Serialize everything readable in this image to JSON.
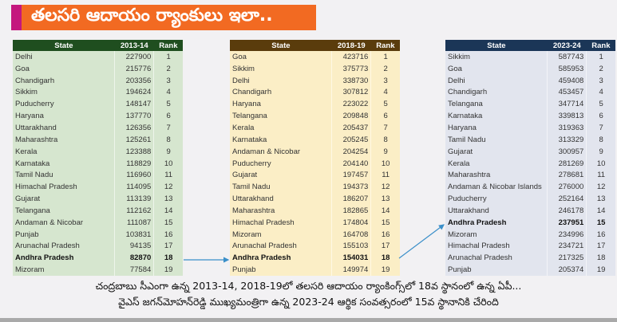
{
  "title": "తలసరి ఆదాయం ర్యాంకులు ఇలా..",
  "colors": {
    "title_bg": "#f26a22",
    "title_accent": "#c4177e",
    "table1_header": "#1f4e1f",
    "table2_header": "#5a3c0c",
    "table3_header": "#1b3657",
    "arrow": "#3a8fc9"
  },
  "tables": [
    {
      "headers": [
        "State",
        "2013-14",
        "Rank"
      ],
      "highlight_state": "Andhra Pradesh",
      "rows": [
        [
          "Delhi",
          "227900",
          "1"
        ],
        [
          "Goa",
          "215776",
          "2"
        ],
        [
          "Chandigarh",
          "203356",
          "3"
        ],
        [
          "Sikkim",
          "194624",
          "4"
        ],
        [
          "Puducherry",
          "148147",
          "5"
        ],
        [
          "Haryana",
          "137770",
          "6"
        ],
        [
          "Uttarakhand",
          "126356",
          "7"
        ],
        [
          "Maharashtra",
          "125261",
          "8"
        ],
        [
          "Kerala",
          "123388",
          "9"
        ],
        [
          "Karnataka",
          "118829",
          "10"
        ],
        [
          "Tamil Nadu",
          "116960",
          "11"
        ],
        [
          "Himachal Pradesh",
          "114095",
          "12"
        ],
        [
          "Gujarat",
          "113139",
          "13"
        ],
        [
          "Telangana",
          "112162",
          "14"
        ],
        [
          "Andaman & Nicobar",
          "111087",
          "15"
        ],
        [
          "Punjab",
          "103831",
          "16"
        ],
        [
          "Arunachal Pradesh",
          "94135",
          "17"
        ],
        [
          "Andhra Pradesh",
          "82870",
          "18"
        ],
        [
          "Mizoram",
          "77584",
          "19"
        ]
      ]
    },
    {
      "headers": [
        "State",
        "2018-19",
        "Rank"
      ],
      "highlight_state": "Andhra Pradesh",
      "rows": [
        [
          "Goa",
          "423716",
          "1"
        ],
        [
          "Sikkim",
          "375773",
          "2"
        ],
        [
          "Delhi",
          "338730",
          "3"
        ],
        [
          "Chandigarh",
          "307812",
          "4"
        ],
        [
          "Haryana",
          "223022",
          "5"
        ],
        [
          "Telangana",
          "209848",
          "6"
        ],
        [
          "Kerala",
          "205437",
          "7"
        ],
        [
          "Karnataka",
          "205245",
          "8"
        ],
        [
          "Andaman & Nicobar",
          "204254",
          "9"
        ],
        [
          "Puducherry",
          "204140",
          "10"
        ],
        [
          "Gujarat",
          "197457",
          "11"
        ],
        [
          "Tamil Nadu",
          "194373",
          "12"
        ],
        [
          "Uttarakhand",
          "186207",
          "13"
        ],
        [
          "Maharashtra",
          "182865",
          "14"
        ],
        [
          "Himachal Pradesh",
          "174804",
          "15"
        ],
        [
          "Mizoram",
          "164708",
          "16"
        ],
        [
          "Arunachal Pradesh",
          "155103",
          "17"
        ],
        [
          "Andhra Pradesh",
          "154031",
          "18"
        ],
        [
          "Punjab",
          "149974",
          "19"
        ]
      ]
    },
    {
      "headers": [
        "State",
        "2023-24",
        "Rank"
      ],
      "highlight_state": "Andhra Pradesh",
      "rows": [
        [
          "Sikkim",
          "587743",
          "1"
        ],
        [
          "Goa",
          "585953",
          "2"
        ],
        [
          "Delhi",
          "459408",
          "3"
        ],
        [
          "Chandigarh",
          "453457",
          "4"
        ],
        [
          "Telangana",
          "347714",
          "5"
        ],
        [
          "Karnataka",
          "339813",
          "6"
        ],
        [
          "Haryana",
          "319363",
          "7"
        ],
        [
          "Tamil Nadu",
          "313329",
          "8"
        ],
        [
          "Gujarat",
          "300957",
          "9"
        ],
        [
          "Kerala",
          "281269",
          "10"
        ],
        [
          "Maharashtra",
          "278681",
          "11"
        ],
        [
          "Andaman & Nicobar Islands",
          "276000",
          "12"
        ],
        [
          "Puducherry",
          "252164",
          "13"
        ],
        [
          "Uttarakhand",
          "246178",
          "14"
        ],
        [
          "Andhra Pradesh",
          "237951",
          "15"
        ],
        [
          "Mizoram",
          "234996",
          "16"
        ],
        [
          "Himachal Pradesh",
          "234721",
          "17"
        ],
        [
          "Arunachal Pradesh",
          "217325",
          "18"
        ],
        [
          "Punjab",
          "205374",
          "19"
        ]
      ]
    }
  ],
  "caption": {
    "line1": "చంద్రబాబు సీఎంగా ఉన్న 2013-14, 2018-19లో తలసరి ఆదాయం ర్యాంకింగ్స్‌లో 18వ స్థానంలో ఉన్న ఏపీ...",
    "line2": "వైఎస్ జగన్‌మోహన్‌రెడ్డి ముఖ్యమంత్రిగా ఉన్న 2023-24 ఆర్థిక సంవత్సరంలో 15వ స్థానానికి చేరింది"
  }
}
